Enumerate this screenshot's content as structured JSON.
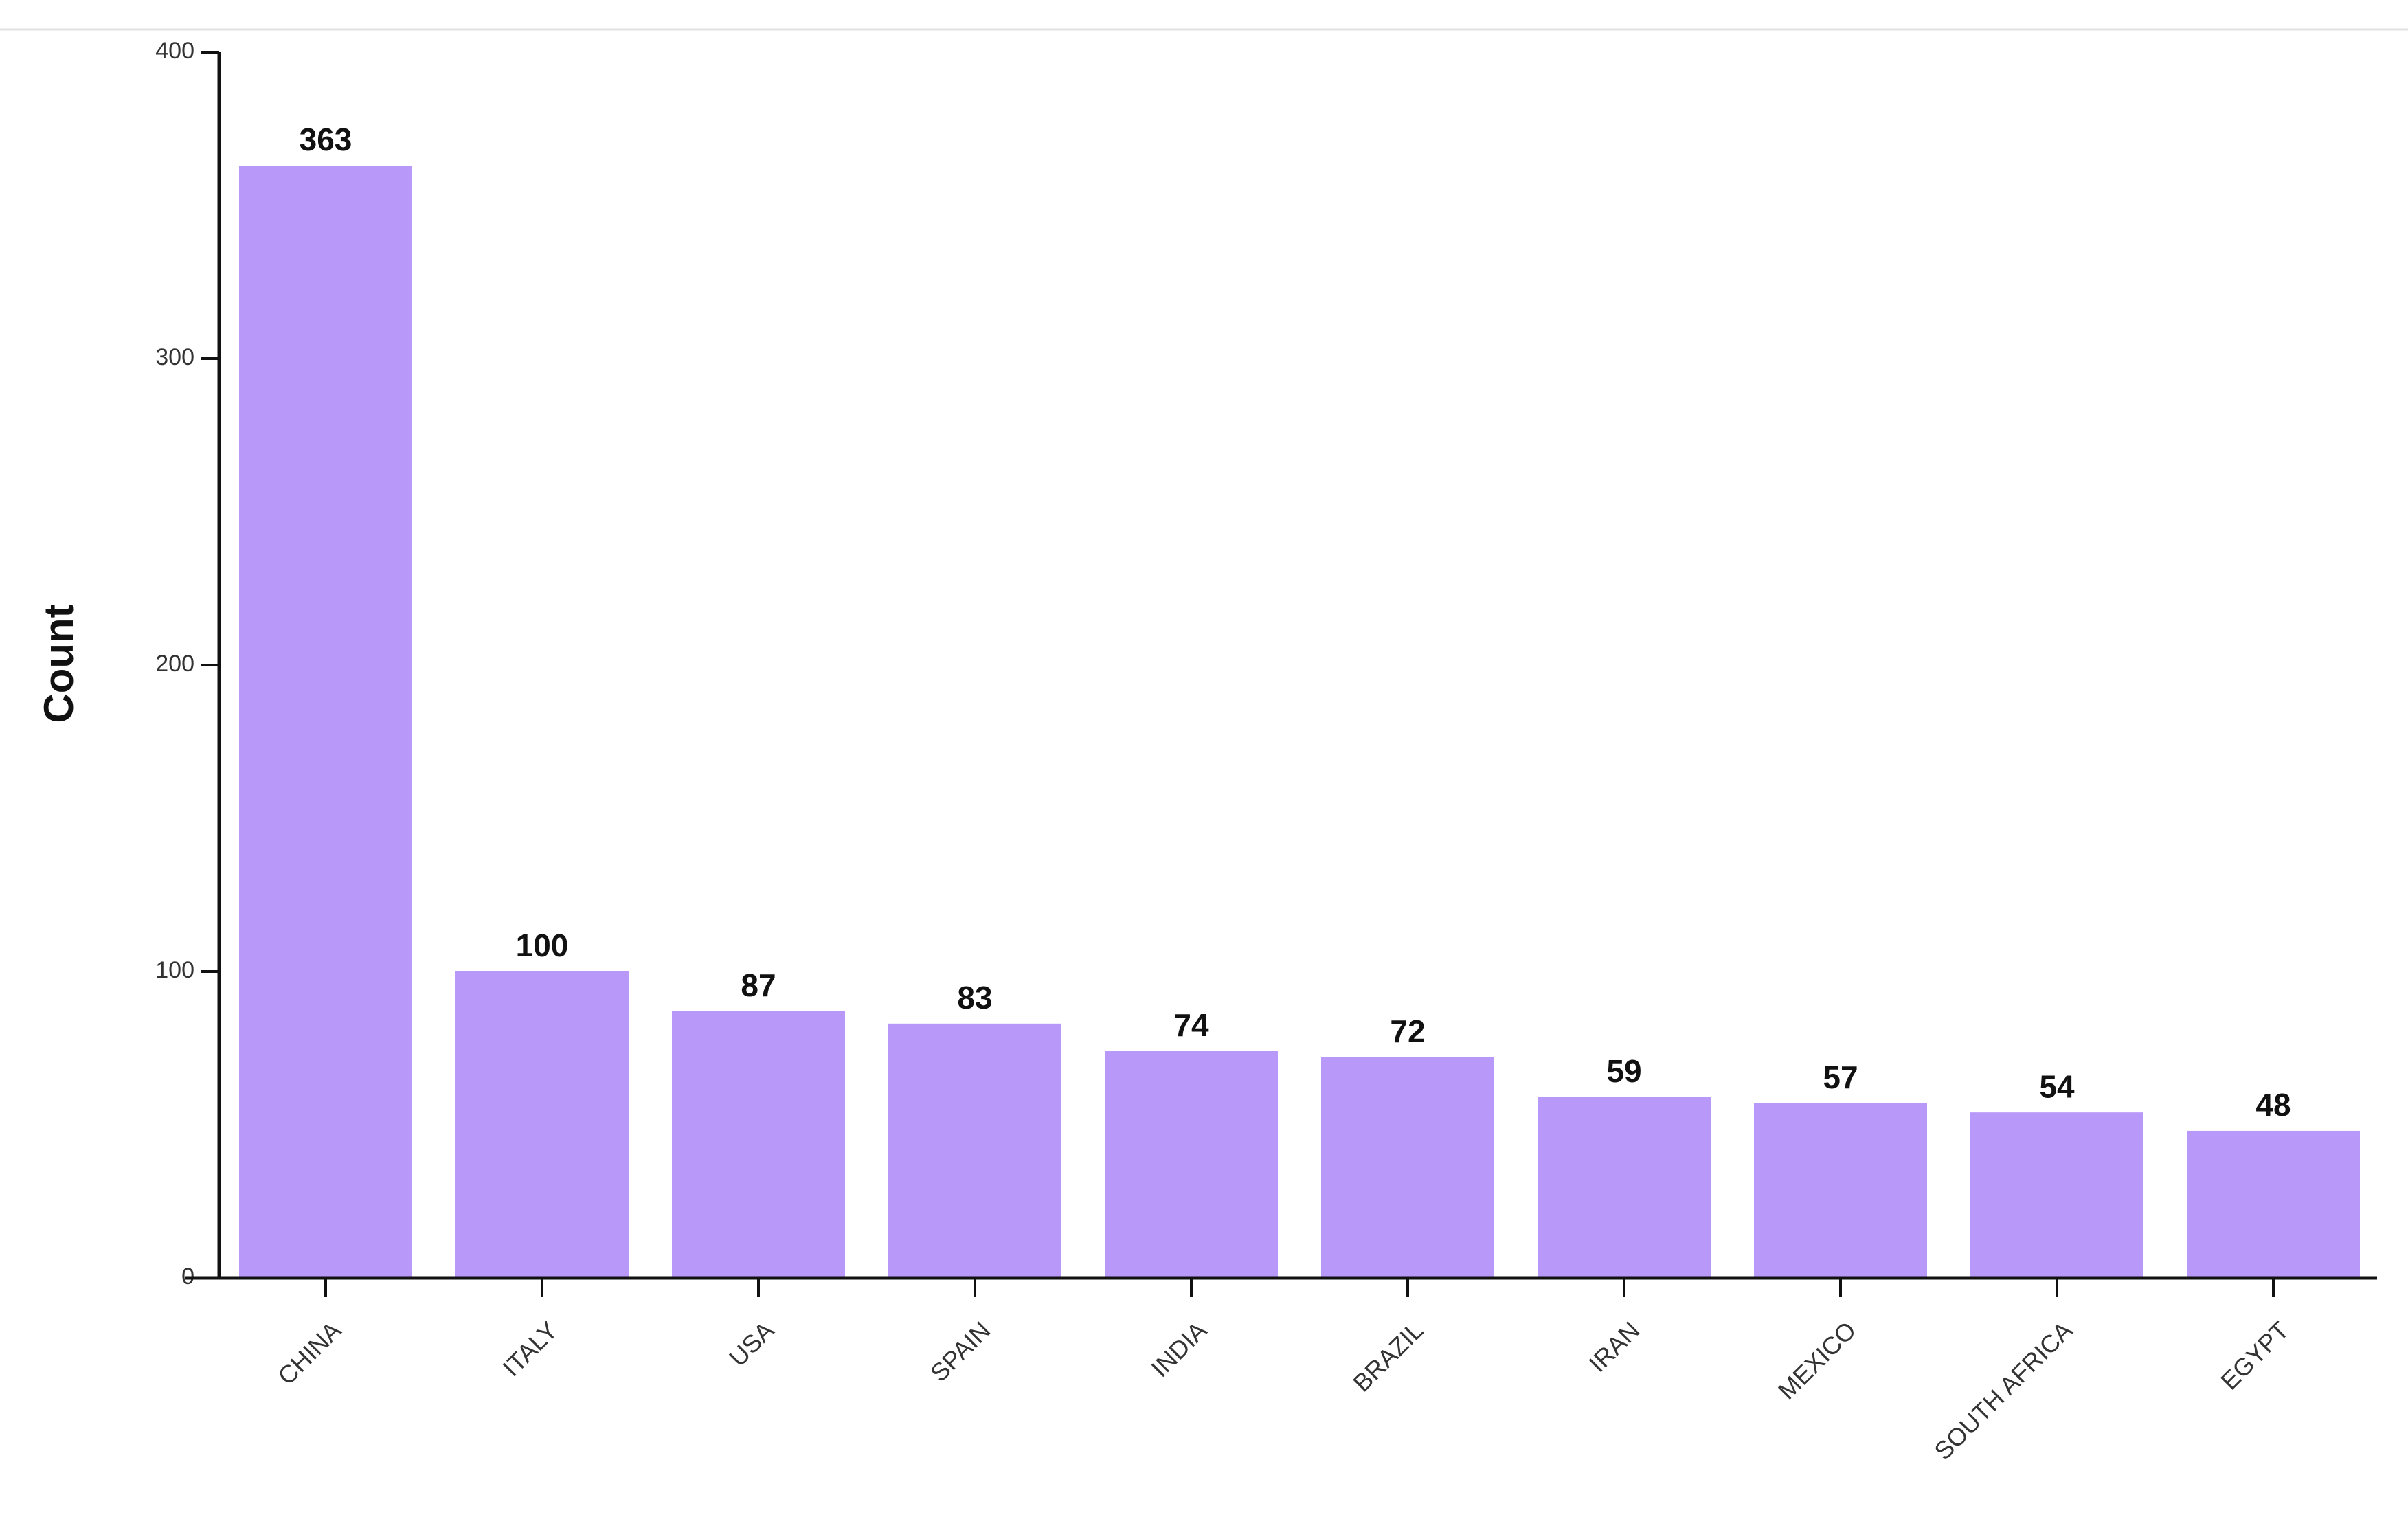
{
  "chart_data": {
    "type": "bar",
    "y_label": "Count",
    "categories": [
      "CHINA",
      "ITALY",
      "USA",
      "SPAIN",
      "INDIA",
      "BRAZIL",
      "IRAN",
      "MEXICO",
      "SOUTH AFRICA",
      "EGYPT"
    ],
    "values": [
      363,
      100,
      87,
      83,
      74,
      72,
      59,
      57,
      54,
      48
    ],
    "color": "#b899fa",
    "ylim": [
      0,
      400
    ],
    "yticks": [
      0,
      100,
      200,
      300,
      400
    ]
  }
}
